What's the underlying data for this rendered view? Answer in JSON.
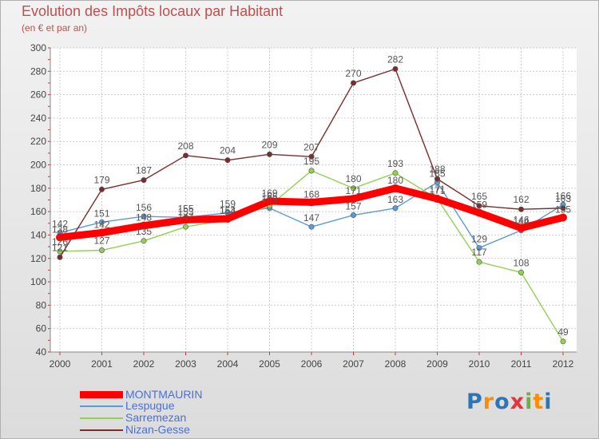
{
  "title": "Evolution des Impôts locaux par Habitant",
  "subtitle": "(en € et par an)",
  "logo_text": "Proxiti",
  "chart_data": {
    "type": "line",
    "title": "Evolution des Impôts locaux par Habitant",
    "subtitle": "(en € et par an)",
    "xlabel": "",
    "ylabel": "",
    "ylim": [
      40,
      300
    ],
    "ytick_step": 20,
    "grid": true,
    "legend_position": "bottom-left",
    "categories": [
      "2000",
      "2001",
      "2002",
      "2003",
      "2004",
      "2005",
      "2006",
      "2007",
      "2008",
      "2009",
      "2010",
      "2011",
      "2012"
    ],
    "series": [
      {
        "name": "MONTMAURIN",
        "color": "#ff0000",
        "emphasis": true,
        "values": [
          138,
          142,
          148,
          153,
          154,
          169,
          168,
          171,
          180,
          171,
          159,
          146,
          155
        ]
      },
      {
        "name": "Lespugue",
        "color": "#5b9bd5",
        "emphasis": false,
        "values": [
          142,
          151,
          156,
          155,
          159,
          163,
          147,
          157,
          163,
          185,
          129,
          144,
          166
        ]
      },
      {
        "name": "Sarremezan",
        "color": "#92d050",
        "emphasis": false,
        "values": [
          126,
          127,
          135,
          147,
          153,
          165,
          195,
          180,
          193,
          171,
          117,
          108,
          49
        ]
      },
      {
        "name": "Nizan-Gesse",
        "color": "#7b2c2c",
        "emphasis": false,
        "values": [
          121,
          179,
          187,
          208,
          204,
          209,
          207,
          270,
          282,
          188,
          165,
          162,
          163
        ]
      }
    ]
  }
}
